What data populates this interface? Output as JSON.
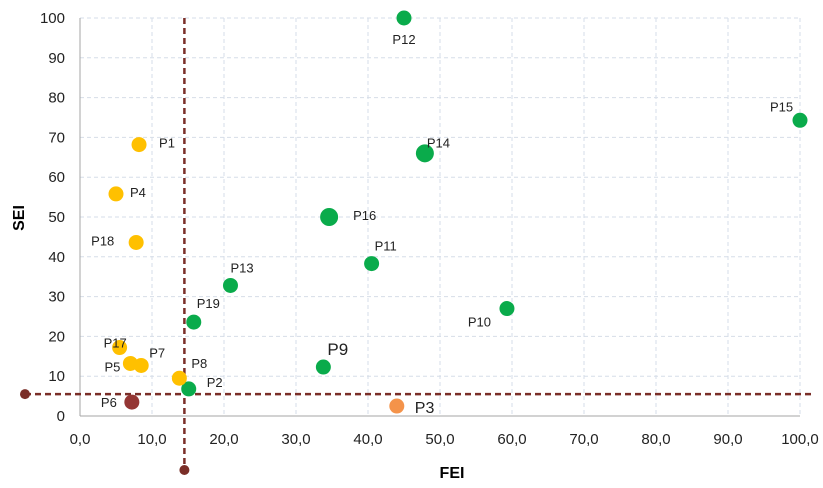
{
  "chart_data": {
    "type": "scatter",
    "xlabel": "FEI",
    "ylabel": "SEI",
    "xlim": [
      0,
      100
    ],
    "ylim": [
      0,
      100
    ],
    "grid": true,
    "x_ticks": [
      "0,0",
      "10,0",
      "20,0",
      "30,0",
      "40,0",
      "50,0",
      "60,0",
      "70,0",
      "80,0",
      "90,0",
      "100,0"
    ],
    "y_ticks": [
      "0",
      "10",
      "20",
      "30",
      "40",
      "50",
      "60",
      "70",
      "80",
      "90",
      "100"
    ],
    "threshold_lines": {
      "vertical_x": 14.5,
      "horizontal_y": 5.5,
      "color": "#7a2e28"
    },
    "colors": {
      "green": "#0aab4b",
      "yellow": "#ffc000",
      "orange": "#f4934a",
      "darkred": "#943634"
    },
    "points": [
      {
        "label": "P1",
        "x": 8.2,
        "y": 68.2,
        "color": "yellow"
      },
      {
        "label": "P2",
        "x": 15.1,
        "y": 6.8,
        "color": "green"
      },
      {
        "label": "P3",
        "x": 44.0,
        "y": 2.5,
        "color": "orange",
        "emphasis": true
      },
      {
        "label": "P4",
        "x": 5.0,
        "y": 55.8,
        "color": "yellow"
      },
      {
        "label": "P5",
        "x": 7.0,
        "y": 13.2,
        "color": "yellow"
      },
      {
        "label": "P6",
        "x": 7.2,
        "y": 3.5,
        "color": "darkred"
      },
      {
        "label": "P7",
        "x": 8.5,
        "y": 12.7,
        "color": "yellow"
      },
      {
        "label": "P8",
        "x": 13.8,
        "y": 9.5,
        "color": "yellow"
      },
      {
        "label": "P9",
        "x": 33.8,
        "y": 12.3,
        "color": "green",
        "emphasis": true
      },
      {
        "label": "P10",
        "x": 59.3,
        "y": 27.0,
        "color": "green"
      },
      {
        "label": "P11",
        "x": 40.5,
        "y": 38.3,
        "color": "green"
      },
      {
        "label": "P12",
        "x": 45.0,
        "y": 100.0,
        "color": "green"
      },
      {
        "label": "P13",
        "x": 20.9,
        "y": 32.8,
        "color": "green"
      },
      {
        "label": "P14",
        "x": 47.9,
        "y": 66.0,
        "color": "green"
      },
      {
        "label": "P15",
        "x": 100.0,
        "y": 74.3,
        "color": "green"
      },
      {
        "label": "P16",
        "x": 34.6,
        "y": 50.0,
        "color": "green"
      },
      {
        "label": "P17",
        "x": 5.5,
        "y": 17.2,
        "color": "yellow"
      },
      {
        "label": "P18",
        "x": 7.8,
        "y": 43.6,
        "color": "yellow"
      },
      {
        "label": "P19",
        "x": 15.8,
        "y": 23.6,
        "color": "green"
      }
    ]
  }
}
